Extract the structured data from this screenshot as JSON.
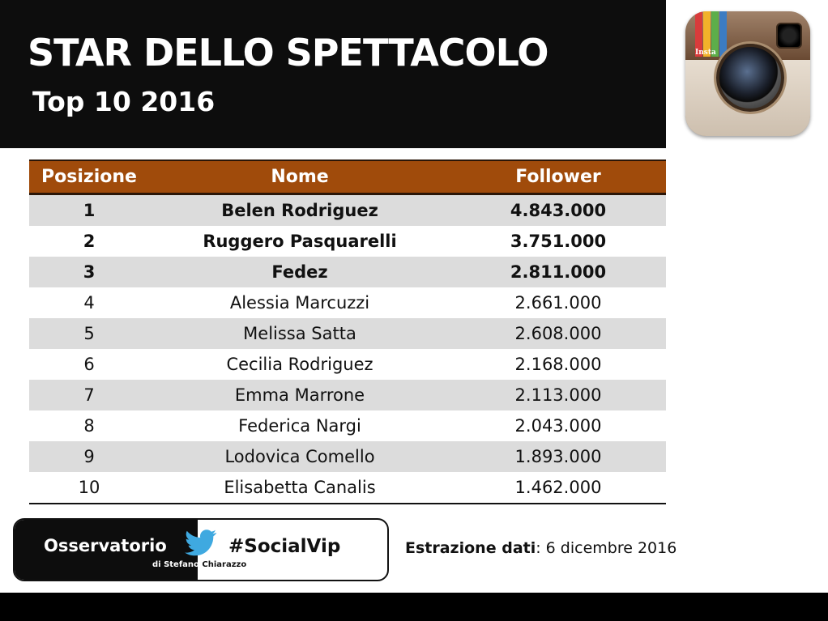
{
  "header": {
    "title": "STAR DELLO SPETTACOLO",
    "subtitle": "Top 10 2016"
  },
  "logo": {
    "icon": "instagram-logo-icon",
    "label": "Insta"
  },
  "table": {
    "columns": [
      "Posizione",
      "Nome",
      "Follower"
    ],
    "rows": [
      {
        "pos": "1",
        "name": "Belen Rodriguez",
        "followers": "4.843.000",
        "highlight": true
      },
      {
        "pos": "2",
        "name": "Ruggero Pasquarelli",
        "followers": "3.751.000",
        "highlight": true
      },
      {
        "pos": "3",
        "name": "Fedez",
        "followers": "2.811.000",
        "highlight": true
      },
      {
        "pos": "4",
        "name": "Alessia Marcuzzi",
        "followers": "2.661.000",
        "highlight": false
      },
      {
        "pos": "5",
        "name": "Melissa Satta",
        "followers": "2.608.000",
        "highlight": false
      },
      {
        "pos": "6",
        "name": "Cecilia Rodriguez",
        "followers": "2.168.000",
        "highlight": false
      },
      {
        "pos": "7",
        "name": "Emma Marrone",
        "followers": "2.113.000",
        "highlight": false
      },
      {
        "pos": "8",
        "name": "Federica Nargi",
        "followers": "2.043.000",
        "highlight": false
      },
      {
        "pos": "9",
        "name": "Lodovica Comello",
        "followers": "1.893.000",
        "highlight": false
      },
      {
        "pos": "10",
        "name": "Elisabetta Canalis",
        "followers": "1.462.000",
        "highlight": false
      }
    ]
  },
  "badge": {
    "brand": "Osservatorio",
    "author_prefix": "di Stefano",
    "author_suffix": " Chiarazzo",
    "bird_icon": "twitter-bird-icon",
    "hashtag": "#SocialVip"
  },
  "extraction": {
    "label": "Estrazione dati",
    "value": ": 6 dicembre 2016"
  },
  "colors": {
    "header_bg": "#0d0d0d",
    "table_header_bg": "#a04b0b",
    "row_alt_bg": "#dcdcdc",
    "twitter_blue": "#3fa9e0"
  }
}
